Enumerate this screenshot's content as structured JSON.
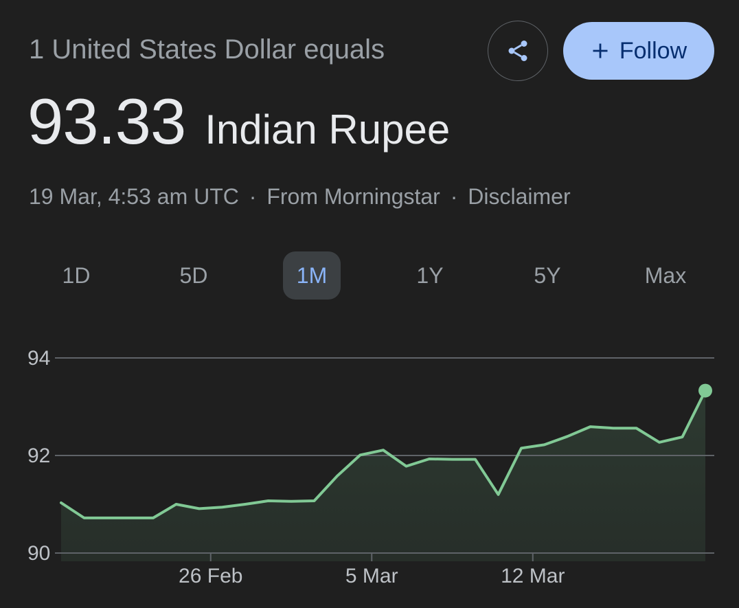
{
  "header": {
    "conversion_label": "1 United States Dollar equals",
    "share_icon": "share-icon",
    "follow_label": "Follow",
    "follow_icon": "plus-icon"
  },
  "rate": {
    "value": "93.33",
    "currency": "Indian Rupee"
  },
  "meta": {
    "timestamp": "19 Mar, 4:53 am UTC",
    "separator": "·",
    "source": "From Morningstar",
    "disclaimer": "Disclaimer"
  },
  "ranges": [
    {
      "label": "1D",
      "active": false
    },
    {
      "label": "5D",
      "active": false
    },
    {
      "label": "1M",
      "active": true
    },
    {
      "label": "1Y",
      "active": false
    },
    {
      "label": "5Y",
      "active": false
    },
    {
      "label": "Max",
      "active": false
    }
  ],
  "colors": {
    "line": "#81c995",
    "fill": "#2d3a31",
    "grid": "#5f6368",
    "active_tab_bg": "#3c4043",
    "active_tab_text": "#8ab4f8",
    "follow_bg": "#a8c7fa"
  },
  "chart_data": {
    "type": "area",
    "title": "",
    "xlabel": "",
    "ylabel": "",
    "ylim": [
      90,
      94
    ],
    "yticks": [
      "94",
      "92",
      "90"
    ],
    "xticks": [
      {
        "label": "26 Feb",
        "index": 6.5
      },
      {
        "label": "5 Mar",
        "index": 13.5
      },
      {
        "label": "12 Mar",
        "index": 20.5
      }
    ],
    "grid": true,
    "series": [
      {
        "values": [
          91.03,
          90.72,
          90.72,
          90.72,
          90.72,
          91.0,
          90.91,
          90.94,
          91.0,
          91.07,
          91.06,
          91.07,
          91.58,
          92.01,
          92.11,
          91.78,
          91.93,
          91.92,
          91.92,
          91.2,
          92.15,
          92.22,
          92.39,
          92.59,
          92.56,
          92.56,
          92.27,
          92.38,
          93.33
        ]
      }
    ]
  }
}
